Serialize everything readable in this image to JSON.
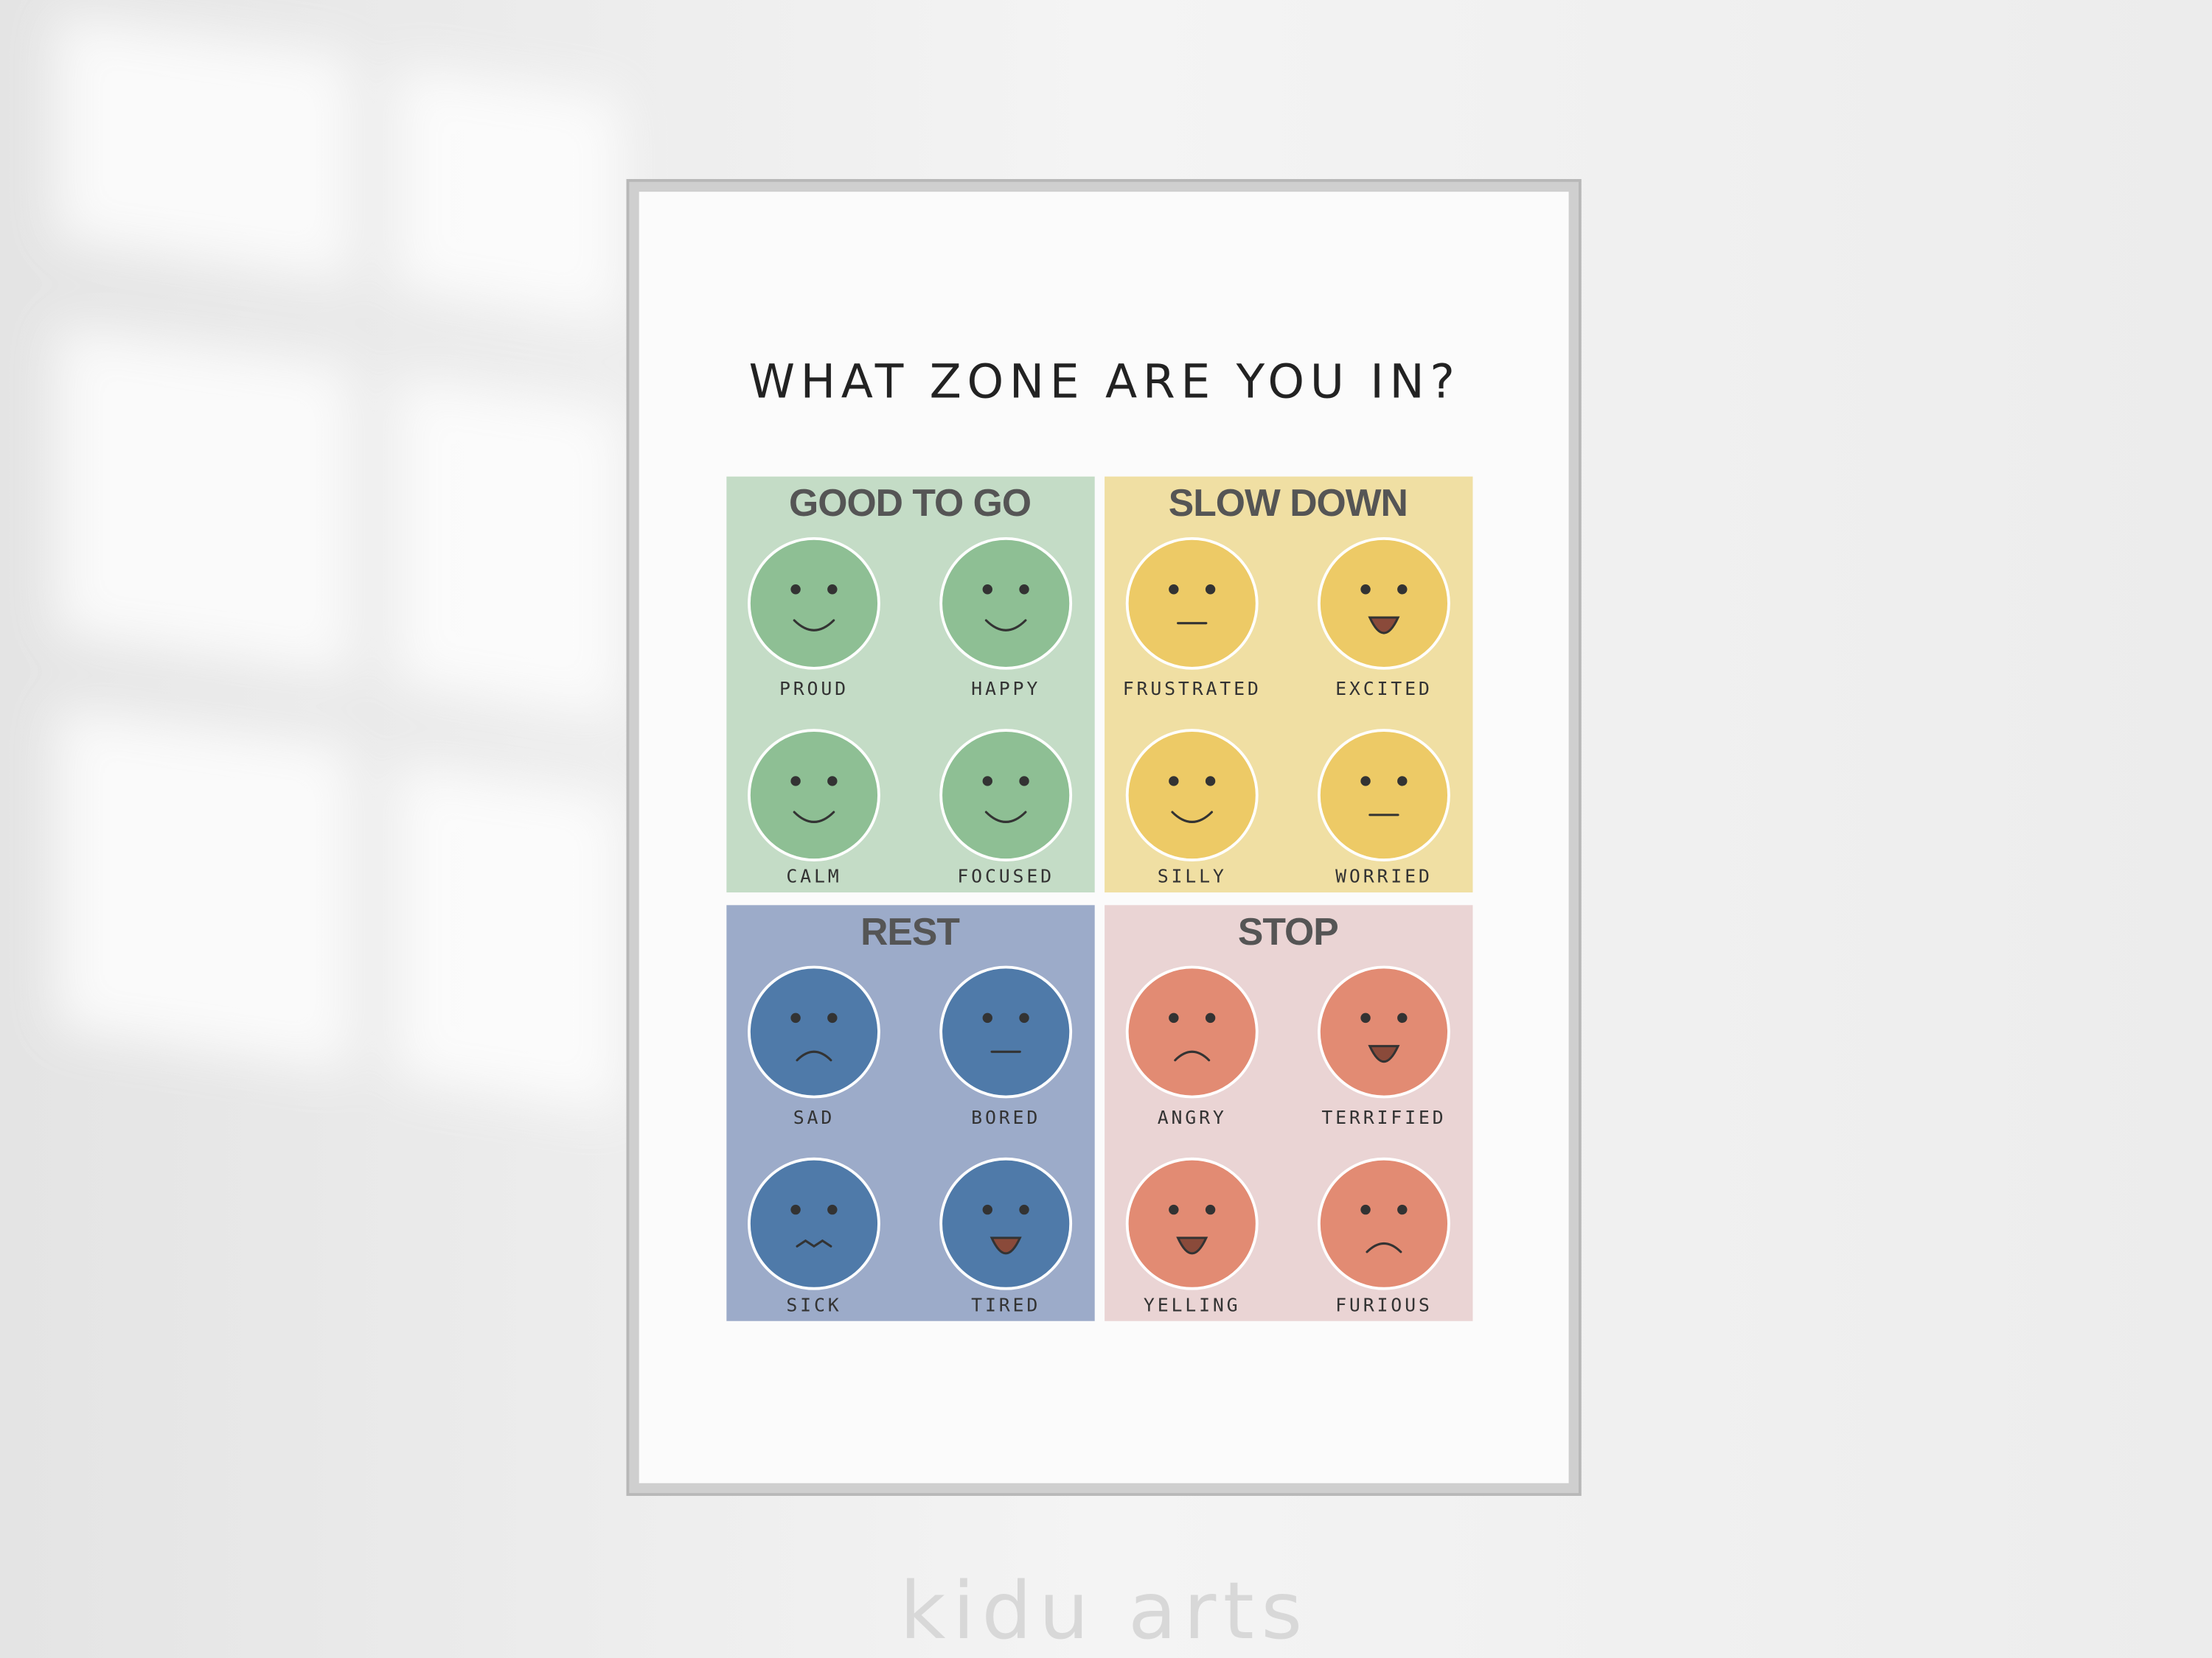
{
  "title": "WHAT ZONE ARE YOU IN?",
  "zones": [
    {
      "name": "GOOD TO GO",
      "emotions": [
        "PROUD",
        "HAPPY",
        "CALM",
        "FOCUSED"
      ]
    },
    {
      "name": "SLOW DOWN",
      "emotions": [
        "FRUSTRATED",
        "EXCITED",
        "SILLY",
        "WORRIED"
      ]
    },
    {
      "name": "REST",
      "emotions": [
        "SAD",
        "BORED",
        "SICK",
        "TIRED"
      ]
    },
    {
      "name": "STOP",
      "emotions": [
        "ANGRY",
        "TERRIFIED",
        "YELLING",
        "FURIOUS"
      ]
    }
  ],
  "brand": "kidu arts"
}
